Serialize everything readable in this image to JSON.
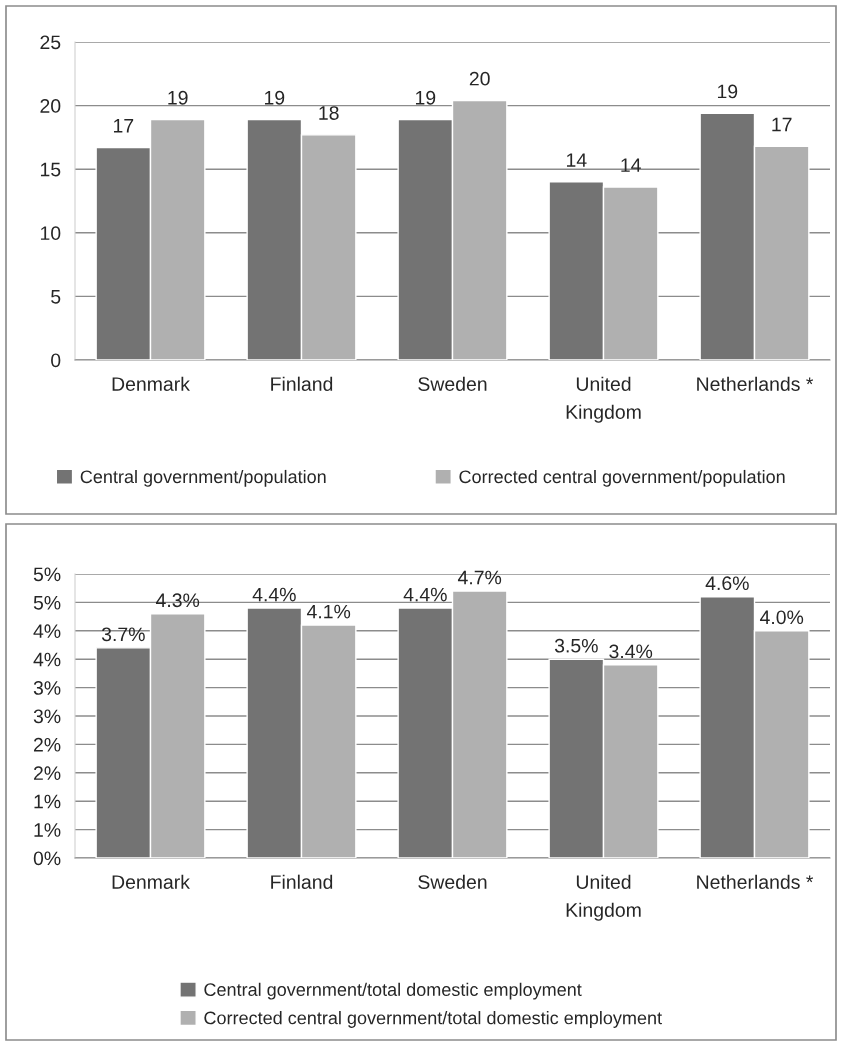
{
  "chart_data": [
    {
      "type": "bar",
      "categories": [
        "Denmark",
        "Finland",
        "Sweden",
        "United\nKingdom",
        "Netherlands *"
      ],
      "series": [
        {
          "name": "Central government/population",
          "color": "#737373",
          "values": [
            16.7,
            18.9,
            18.9,
            14.0,
            19.4
          ],
          "value_labels": [
            "17",
            "19",
            "19",
            "14",
            "19"
          ]
        },
        {
          "name": "Corrected central government/population",
          "color": "#b0b0b0",
          "values": [
            18.9,
            17.7,
            20.4,
            13.6,
            16.8
          ],
          "value_labels": [
            "19",
            "18",
            "20",
            "14",
            "17"
          ]
        }
      ],
      "ylim": [
        0,
        25
      ],
      "yticks": [
        0,
        5,
        10,
        15,
        20,
        25
      ],
      "grid": "y",
      "legend": "bottom"
    },
    {
      "type": "bar",
      "categories": [
        "Denmark",
        "Finland",
        "Sweden",
        "United\nKingdom",
        "Netherlands *"
      ],
      "series": [
        {
          "name": "Central government/total domestic employment",
          "color": "#737373",
          "values": [
            3.7,
            4.4,
            4.4,
            3.5,
            4.6
          ],
          "value_labels": [
            "3.7%",
            "4.4%",
            "4.4%",
            "3.5%",
            "4.6%"
          ]
        },
        {
          "name": "Corrected central government/total domestic employment",
          "color": "#b0b0b0",
          "values": [
            4.3,
            4.1,
            4.7,
            3.4,
            4.0
          ],
          "value_labels": [
            "4.3%",
            "4.1%",
            "4.7%",
            "3.4%",
            "4.0%"
          ]
        }
      ],
      "ylim": [
        0,
        5
      ],
      "yticks": [
        {
          "value": 0,
          "label": "0%"
        },
        {
          "value": 0.5,
          "label": "1%"
        },
        {
          "value": 1,
          "label": "1%"
        },
        {
          "value": 1.5,
          "label": "2%"
        },
        {
          "value": 2,
          "label": "2%"
        },
        {
          "value": 2.5,
          "label": "3%"
        },
        {
          "value": 3,
          "label": "3%"
        },
        {
          "value": 3.5,
          "label": "4%"
        },
        {
          "value": 4,
          "label": "4%"
        },
        {
          "value": 4.5,
          "label": "5%"
        },
        {
          "value": 5,
          "label": "5%"
        }
      ],
      "grid": "y",
      "legend": "bottom"
    }
  ]
}
